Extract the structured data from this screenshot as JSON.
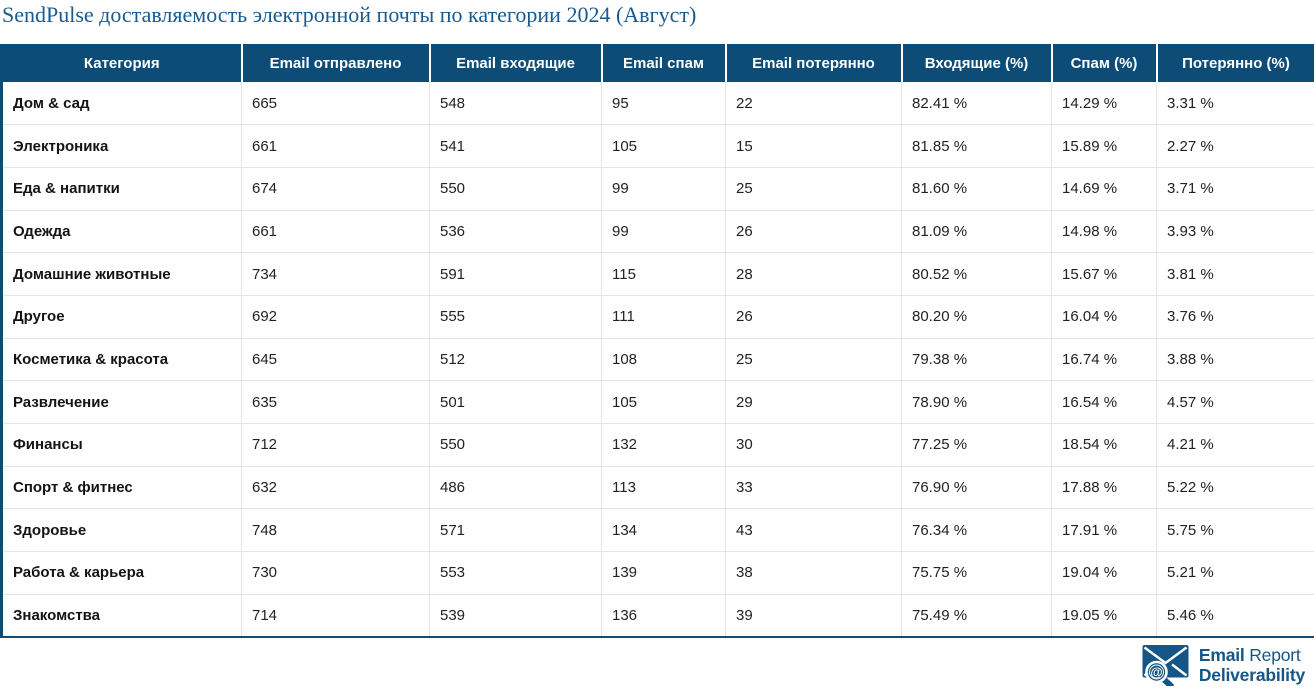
{
  "page_title": "SendPulse доставляемость электронной почты по категории 2024 (Август)",
  "colors": {
    "header_bg": "#0d4c77",
    "title_text": "#1b5a8e",
    "logo_blue": "#155686",
    "row_border": "#e4e4e4"
  },
  "chart_data": {
    "type": "table",
    "title": "SendPulse доставляемость электронной почты по категории 2024 (Август)",
    "columns": [
      "Категория",
      "Email отправлено",
      "Email входящие",
      "Email спам",
      "Email потерянно",
      "Входящие (%)",
      "Спам (%)",
      "Потерянно (%)"
    ],
    "rows": [
      [
        "Дом & сад",
        665,
        548,
        95,
        22,
        "82.41 %",
        "14.29 %",
        "3.31 %"
      ],
      [
        "Электроника",
        661,
        541,
        105,
        15,
        "81.85 %",
        "15.89 %",
        "2.27 %"
      ],
      [
        "Еда & напитки",
        674,
        550,
        99,
        25,
        "81.60 %",
        "14.69 %",
        "3.71 %"
      ],
      [
        "Одежда",
        661,
        536,
        99,
        26,
        "81.09 %",
        "14.98 %",
        "3.93 %"
      ],
      [
        "Домашние животные",
        734,
        591,
        115,
        28,
        "80.52 %",
        "15.67 %",
        "3.81 %"
      ],
      [
        "Другое",
        692,
        555,
        111,
        26,
        "80.20 %",
        "16.04 %",
        "3.76 %"
      ],
      [
        "Косметика & красота",
        645,
        512,
        108,
        25,
        "79.38 %",
        "16.74 %",
        "3.88 %"
      ],
      [
        "Развлечение",
        635,
        501,
        105,
        29,
        "78.90 %",
        "16.54 %",
        "4.57 %"
      ],
      [
        "Финансы",
        712,
        550,
        132,
        30,
        "77.25 %",
        "18.54 %",
        "4.21 %"
      ],
      [
        "Спорт & фитнес",
        632,
        486,
        113,
        33,
        "76.90 %",
        "17.88 %",
        "5.22 %"
      ],
      [
        "Здоровье",
        748,
        571,
        134,
        43,
        "76.34 %",
        "17.91 %",
        "5.75 %"
      ],
      [
        "Работа & карьера",
        730,
        553,
        139,
        38,
        "75.75 %",
        "19.04 %",
        "5.21 %"
      ],
      [
        "Знакомства",
        714,
        539,
        136,
        39,
        "75.49 %",
        "19.05 %",
        "5.46 %"
      ]
    ]
  },
  "logo": {
    "line1_bold": "Email",
    "line1_regular": " Report",
    "line2": "Deliverability",
    "at_glyph": "@"
  }
}
